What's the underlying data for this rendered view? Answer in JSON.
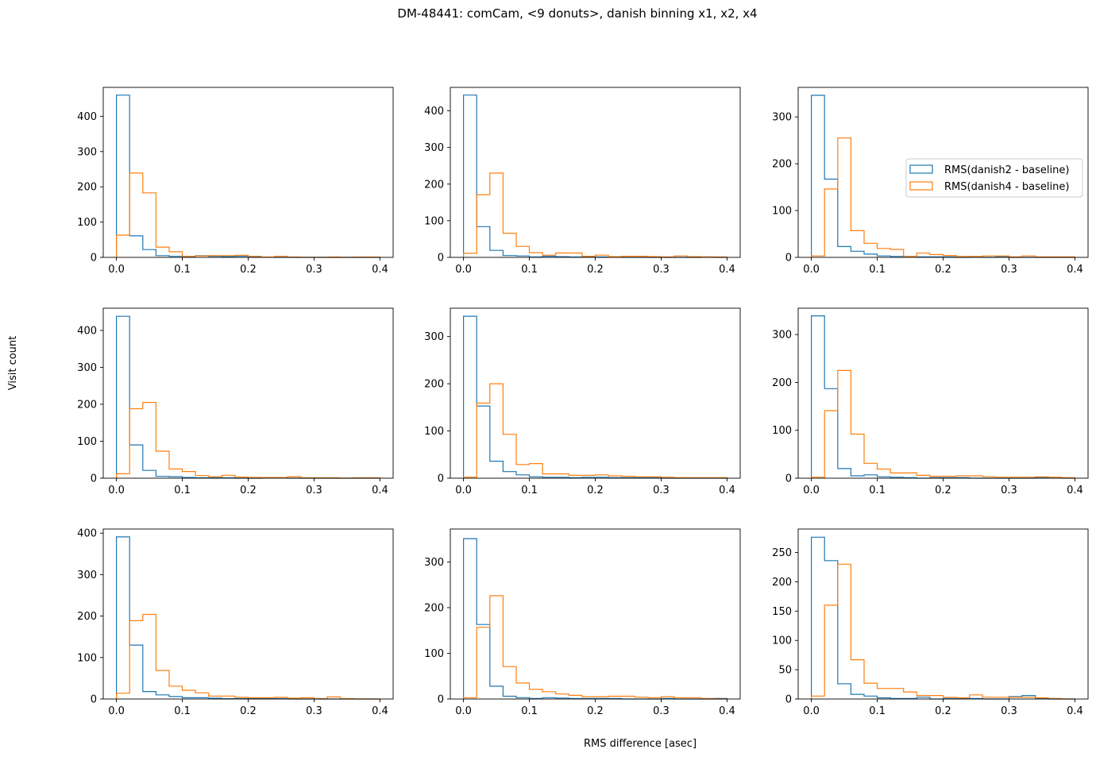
{
  "chart_data": {
    "type": "histogram-grid",
    "title": "DM-48441:  comCam,  <9 donuts>, danish binning x1, x2, x4",
    "xlabel": "RMS difference [asec]",
    "ylabel": "Visit count",
    "xlim": [
      -0.02,
      0.42
    ],
    "xticks": [
      0.0,
      0.1,
      0.2,
      0.3,
      0.4
    ],
    "xtick_labels": [
      "0.0",
      "0.1",
      "0.2",
      "0.3",
      "0.4"
    ],
    "bin_edges": [
      0.0,
      0.02,
      0.04,
      0.06,
      0.08,
      0.1,
      0.12,
      0.14,
      0.16,
      0.18,
      0.2,
      0.22,
      0.24,
      0.26,
      0.28,
      0.3,
      0.32,
      0.34,
      0.36,
      0.38,
      0.4
    ],
    "series_names": [
      "RMS(danish2 - baseline)",
      "RMS(danish4 - baseline)"
    ],
    "colors": [
      "#1f77b4",
      "#ff7f0e"
    ],
    "grid": false,
    "legend": {
      "panel": 2,
      "placement": "center-right"
    },
    "panels": [
      {
        "ylim": [
          0,
          482
        ],
        "yticks": [
          0,
          100,
          200,
          300,
          400
        ],
        "series": [
          {
            "name": "RMS(danish2 - baseline)",
            "values": [
              460,
              61,
              22,
              5,
              3,
              2,
              5,
              3,
              2,
              3,
              1,
              1,
              0,
              0,
              0,
              0,
              0,
              0,
              0,
              0
            ]
          },
          {
            "name": "RMS(danish4 - baseline)",
            "values": [
              63,
              239,
              183,
              29,
              16,
              3,
              4,
              5,
              5,
              6,
              3,
              1,
              3,
              1,
              0,
              0,
              1,
              0,
              1,
              1
            ]
          }
        ]
      },
      {
        "ylim": [
          0,
          464
        ],
        "yticks": [
          0,
          100,
          200,
          300,
          400
        ],
        "series": [
          {
            "name": "RMS(danish2 - baseline)",
            "values": [
              443,
              84,
              19,
              5,
              4,
              1,
              3,
              2,
              1,
              1,
              1,
              1,
              0,
              0,
              0,
              0,
              0,
              0,
              1,
              0
            ]
          },
          {
            "name": "RMS(danish4 - baseline)",
            "values": [
              11,
              171,
              230,
              66,
              30,
              13,
              6,
              12,
              12,
              3,
              6,
              2,
              3,
              3,
              2,
              1,
              4,
              2,
              1,
              1
            ]
          }
        ]
      },
      {
        "ylim": [
          0,
          363
        ],
        "yticks": [
          0,
          100,
          200,
          300
        ],
        "series": [
          {
            "name": "RMS(danish2 - baseline)",
            "values": [
              346,
              167,
              23,
              13,
              7,
              3,
              2,
              2,
              1,
              1,
              1,
              0,
              1,
              0,
              1,
              0,
              0,
              0,
              0,
              0
            ]
          },
          {
            "name": "RMS(danish4 - baseline)",
            "values": [
              3,
              146,
              255,
              57,
              30,
              19,
              17,
              2,
              9,
              6,
              4,
              2,
              2,
              3,
              3,
              1,
              3,
              1,
              1,
              1
            ]
          }
        ]
      },
      {
        "ylim": [
          0,
          460
        ],
        "yticks": [
          0,
          100,
          200,
          300,
          400
        ],
        "series": [
          {
            "name": "RMS(danish2 - baseline)",
            "values": [
              438,
              90,
              21,
              5,
              4,
              2,
              1,
              1,
              1,
              0,
              0,
              1,
              1,
              0,
              0,
              0,
              0,
              0,
              0,
              0
            ]
          },
          {
            "name": "RMS(danish4 - baseline)",
            "values": [
              12,
              188,
              205,
              73,
              25,
              18,
              7,
              4,
              8,
              3,
              2,
              2,
              2,
              4,
              1,
              1,
              1,
              0,
              1,
              1
            ]
          }
        ]
      },
      {
        "ylim": [
          0,
          360
        ],
        "yticks": [
          0,
          100,
          200,
          300
        ],
        "series": [
          {
            "name": "RMS(danish2 - baseline)",
            "values": [
              343,
              153,
              36,
              14,
              7,
              3,
              2,
              2,
              1,
              2,
              2,
              1,
              1,
              1,
              1,
              0,
              0,
              0,
              0,
              0
            ]
          },
          {
            "name": "RMS(danish4 - baseline)",
            "values": [
              2,
              159,
              200,
              93,
              29,
              31,
              9,
              9,
              6,
              6,
              7,
              5,
              4,
              3,
              3,
              2,
              1,
              1,
              1,
              1
            ]
          }
        ]
      },
      {
        "ylim": [
          0,
          355
        ],
        "yticks": [
          0,
          100,
          200,
          300
        ],
        "series": [
          {
            "name": "RMS(danish2 - baseline)",
            "values": [
              339,
              187,
              20,
              5,
              7,
              3,
              2,
              1,
              0,
              1,
              1,
              1,
              0,
              0,
              0,
              0,
              0,
              1,
              1,
              0
            ]
          },
          {
            "name": "RMS(danish4 - baseline)",
            "values": [
              2,
              141,
              225,
              92,
              31,
              19,
              11,
              11,
              6,
              4,
              4,
              5,
              5,
              3,
              2,
              2,
              2,
              3,
              2,
              1
            ]
          }
        ]
      },
      {
        "ylim": [
          0,
          410
        ],
        "yticks": [
          0,
          100,
          200,
          300,
          400
        ],
        "series": [
          {
            "name": "RMS(danish2 - baseline)",
            "values": [
              391,
              130,
              18,
              10,
              6,
              3,
              3,
              2,
              1,
              1,
              1,
              1,
              1,
              0,
              0,
              0,
              0,
              0,
              0,
              0
            ]
          },
          {
            "name": "RMS(danish4 - baseline)",
            "values": [
              14,
              189,
              204,
              69,
              31,
              21,
              15,
              7,
              7,
              4,
              3,
              3,
              4,
              2,
              3,
              1,
              5,
              1,
              0,
              0
            ]
          }
        ]
      },
      {
        "ylim": [
          0,
          372
        ],
        "yticks": [
          0,
          100,
          200,
          300
        ],
        "series": [
          {
            "name": "RMS(danish2 - baseline)",
            "values": [
              351,
              163,
              28,
              6,
              3,
              1,
              3,
              2,
              1,
              1,
              1,
              1,
              0,
              0,
              0,
              1,
              0,
              0,
              0,
              1
            ]
          },
          {
            "name": "RMS(danish4 - baseline)",
            "values": [
              3,
              157,
              226,
              71,
              35,
              21,
              16,
              11,
              8,
              5,
              5,
              6,
              6,
              4,
              3,
              5,
              3,
              3,
              1,
              0
            ]
          }
        ]
      },
      {
        "ylim": [
          0,
          290
        ],
        "yticks": [
          0,
          50,
          100,
          150,
          200,
          250
        ],
        "series": [
          {
            "name": "RMS(danish2 - baseline)",
            "values": [
              276,
              236,
              26,
              8,
              5,
              2,
              1,
              1,
              3,
              0,
              1,
              1,
              1,
              0,
              0,
              4,
              6,
              1,
              0,
              0
            ]
          },
          {
            "name": "RMS(danish4 - baseline)",
            "values": [
              5,
              160,
              230,
              67,
              27,
              18,
              18,
              12,
              6,
              6,
              3,
              2,
              7,
              3,
              3,
              3,
              3,
              2,
              1,
              0
            ]
          }
        ]
      }
    ]
  }
}
